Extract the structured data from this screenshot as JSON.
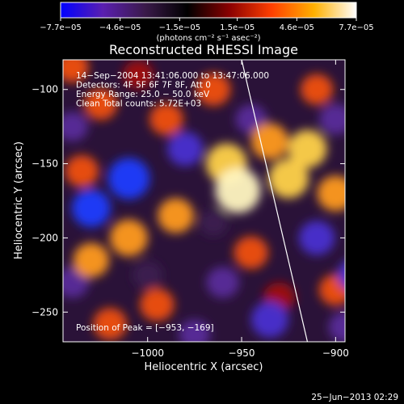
{
  "chart_data": {
    "type": "heatmap",
    "title": "Reconstructed RHESSI Image",
    "xlabel": "Heliocentric X (arcsec)",
    "ylabel": "Heliocentric Y (arcsec)",
    "xlim": [
      -1045,
      -895
    ],
    "ylim": [
      -270,
      -80
    ],
    "x_ticks": [
      -1000,
      -950,
      -900
    ],
    "x_tick_labels": [
      "−1000",
      "−950",
      "−900"
    ],
    "y_ticks": [
      -100,
      -150,
      -200,
      -250
    ],
    "y_tick_labels": [
      "−100",
      "−150",
      "−200",
      "−250"
    ],
    "colorbar": {
      "range": [
        -7.7e-05,
        7.7e-05
      ],
      "ticks": [
        -7.7e-05,
        -4.6e-05,
        -1.5e-05,
        1.5e-05,
        4.6e-05,
        7.7e-05
      ],
      "tick_labels": [
        "−7.7e−05",
        "−4.6e−05",
        "−1.5e−05",
        "1.5e−05",
        "4.6e−05",
        "7.7e−05"
      ],
      "units_label": "(photons cm⁻² s⁻¹ asec⁻²)",
      "colors": [
        "#0000ff",
        "#5a1fb0",
        "#3a1a4a",
        "#000000",
        "#8a0000",
        "#ff4000",
        "#ffb000",
        "#ffffff"
      ]
    },
    "annotations": [
      "14−Sep−2004 13:41:06.000 to 13:47:06.000",
      "Detectors: 4F 5F 6F 7F 8F, Att 0",
      "Energy Range: 25.0 − 50.0 keV",
      "Clean     Total counts: 5.72E+03"
    ],
    "peak_label": "Position of Peak = [−953, −169]",
    "peak": {
      "x": -953,
      "y": -169
    },
    "limb": [
      {
        "x": -950,
        "y": -80
      },
      {
        "x": -915,
        "y": -270
      }
    ],
    "blobs": [
      {
        "x": -952,
        "y": -168,
        "v": 7.7e-05
      },
      {
        "x": -958,
        "y": -150,
        "v": 6.3e-05
      },
      {
        "x": -925,
        "y": -160,
        "v": 6e-05
      },
      {
        "x": -915,
        "y": -140,
        "v": 5.5e-05
      },
      {
        "x": -935,
        "y": -135,
        "v": 5e-05
      },
      {
        "x": -900,
        "y": -170,
        "v": 4.8e-05
      },
      {
        "x": -880,
        "y": -150,
        "v": 4.2e-05
      },
      {
        "x": -1010,
        "y": -200,
        "v": 5.2e-05
      },
      {
        "x": -985,
        "y": -185,
        "v": 4.6e-05
      },
      {
        "x": -1030,
        "y": -215,
        "v": 4.5e-05
      },
      {
        "x": -990,
        "y": -120,
        "v": 3.8e-05
      },
      {
        "x": -965,
        "y": -100,
        "v": 4e-05
      },
      {
        "x": -1025,
        "y": -110,
        "v": 3.6e-05
      },
      {
        "x": -1035,
        "y": -155,
        "v": 3.8e-05
      },
      {
        "x": -945,
        "y": -210,
        "v": 4e-05
      },
      {
        "x": -930,
        "y": -240,
        "v": 3e-05
      },
      {
        "x": -995,
        "y": -245,
        "v": 4e-05
      },
      {
        "x": -1020,
        "y": -258,
        "v": 3.8e-05
      },
      {
        "x": -900,
        "y": -235,
        "v": 3.6e-05
      },
      {
        "x": -880,
        "y": -210,
        "v": 3.2e-05
      },
      {
        "x": -875,
        "y": -95,
        "v": 3e-05
      },
      {
        "x": -910,
        "y": -100,
        "v": 3.4e-05
      },
      {
        "x": -1005,
        "y": -90,
        "v": 2.8e-05
      },
      {
        "x": -1040,
        "y": -85,
        "v": 3.4e-05
      },
      {
        "x": -1010,
        "y": -160,
        "v": -6.5e-05
      },
      {
        "x": -1030,
        "y": -180,
        "v": -5.5e-05
      },
      {
        "x": -980,
        "y": -140,
        "v": -4.5e-05
      },
      {
        "x": -910,
        "y": -200,
        "v": -4.5e-05
      },
      {
        "x": -890,
        "y": -225,
        "v": -4e-05
      },
      {
        "x": -935,
        "y": -255,
        "v": -5e-05
      },
      {
        "x": -895,
        "y": -260,
        "v": -3.5e-05
      },
      {
        "x": -960,
        "y": -230,
        "v": -3.5e-05
      },
      {
        "x": -975,
        "y": -265,
        "v": -3e-05
      },
      {
        "x": -945,
        "y": -120,
        "v": -3e-05
      },
      {
        "x": -1040,
        "y": -230,
        "v": -3.5e-05
      },
      {
        "x": -1040,
        "y": -125,
        "v": -3e-05
      },
      {
        "x": -900,
        "y": -120,
        "v": -3.5e-05
      },
      {
        "x": -1000,
        "y": -225,
        "v": -2.5e-05
      },
      {
        "x": -965,
        "y": -190,
        "v": -2e-05
      }
    ]
  },
  "footer": {
    "date": "25−Jun−2013 02:29"
  }
}
